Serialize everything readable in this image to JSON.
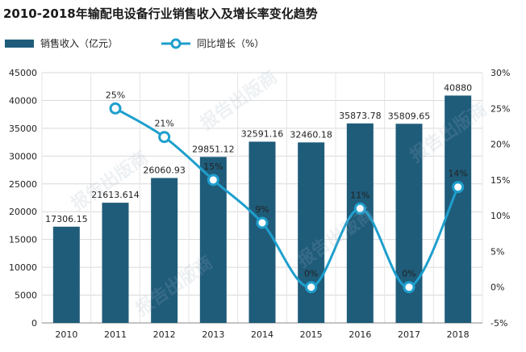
{
  "chart_data": {
    "type": "bar",
    "title": "2010-2018年输配电设备行业销售收入及增长率变化趋势",
    "categories": [
      "2010",
      "2011",
      "2012",
      "2013",
      "2014",
      "2015",
      "2016",
      "2017",
      "2018"
    ],
    "series": [
      {
        "name": "销售收入（亿元）",
        "type": "bar",
        "axis": "left",
        "color": "#1f5c7a",
        "values": [
          17306.15,
          21613.614,
          26060.93,
          29851.12,
          32591.16,
          32460.18,
          35873.78,
          35809.65,
          40880
        ],
        "labels": [
          "17306.15",
          "21613.614",
          "26060.93",
          "29851.12",
          "32591.16",
          "32460.18",
          "35873.78",
          "35809.65",
          "40880"
        ]
      },
      {
        "name": "同比增长（%）",
        "type": "line",
        "axis": "right",
        "color": "#1e9fcd",
        "values": [
          null,
          25,
          21,
          15,
          9,
          0,
          11,
          0,
          14
        ],
        "labels": [
          "",
          "25%",
          "21%",
          "15%",
          "9%",
          "0%",
          "11%",
          "0%",
          "14%"
        ]
      }
    ],
    "y_left": {
      "min": 0,
      "max": 45000,
      "ticks": [
        "0",
        "5000",
        "10000",
        "15000",
        "20000",
        "25000",
        "30000",
        "35000",
        "40000",
        "45000"
      ]
    },
    "y_right": {
      "min": -5,
      "max": 30,
      "ticks": [
        "-5%",
        "0%",
        "5%",
        "10%",
        "15%",
        "20%",
        "25%",
        "30%"
      ]
    },
    "grid": true,
    "legend_position": "top-left"
  },
  "watermark": "报告出版商"
}
